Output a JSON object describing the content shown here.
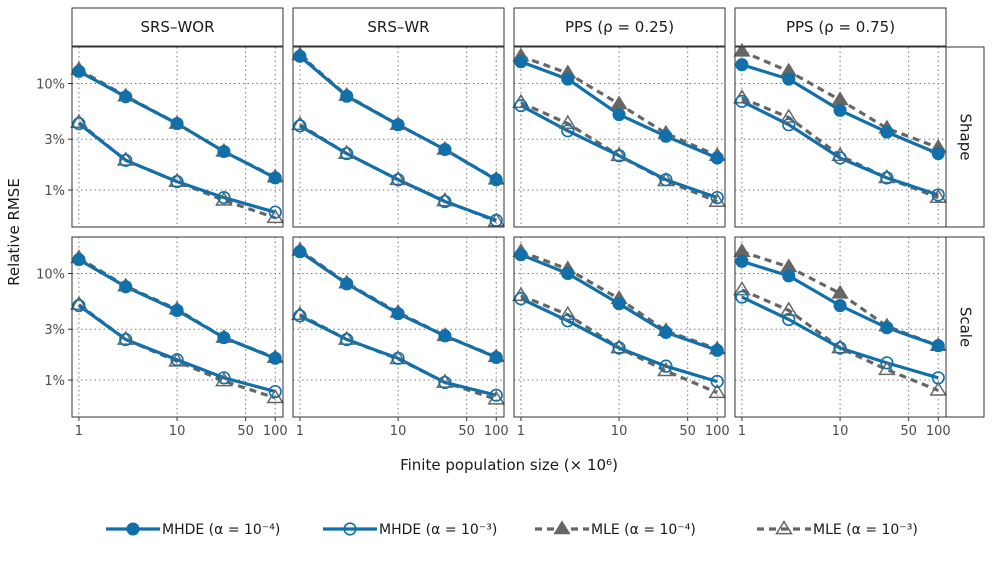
{
  "chart_data": {
    "type": "line",
    "xlabel": "Finite population size (× 10⁶)",
    "ylabel": "Relative RMSE",
    "x_scale": "log",
    "y_scale": "log",
    "xlim": [
      0.85,
      120
    ],
    "ylim": [
      0.0045,
      0.22
    ],
    "x_ticks": [
      1,
      10,
      50,
      100
    ],
    "x_tick_labels": [
      "1",
      "10",
      "50",
      "100"
    ],
    "y_ticks": [
      0.01,
      0.03,
      0.1
    ],
    "y_tick_labels": [
      "1%",
      "3%",
      "10%"
    ],
    "x": [
      1,
      3,
      10,
      30,
      100
    ],
    "columns": [
      "SRS–WOR",
      "SRS–WR",
      "PPS (ρ = 0.25)",
      "PPS (ρ = 0.75)"
    ],
    "rows": [
      "Shape",
      "Scale"
    ],
    "legend": [
      {
        "label": "MHDE (α = 10⁻⁴)",
        "series": 0
      },
      {
        "label": "MHDE (α = 10⁻³)",
        "series": 1
      },
      {
        "label": "MLE (α = 10⁻⁴)",
        "series": 2
      },
      {
        "label": "MLE (α = 10⁻³)",
        "series": 3
      }
    ],
    "legend_position": "bottom",
    "series_styles": [
      {
        "name": "MHDE (α = 10⁻⁴)",
        "color": "#1170aa",
        "marker": "circle-filled",
        "line": "solid"
      },
      {
        "name": "MHDE (α = 10⁻³)",
        "color": "#1170aa",
        "marker": "circle-open",
        "line": "solid"
      },
      {
        "name": "MLE (α = 10⁻⁴)",
        "color": "#666666",
        "marker": "triangle-filled",
        "line": "dashed"
      },
      {
        "name": "MLE (α = 10⁻³)",
        "color": "#666666",
        "marker": "triangle-open",
        "line": "dashed"
      }
    ],
    "panels": [
      {
        "row": "Shape",
        "col": "SRS–WOR",
        "series": [
          {
            "name": "MHDE (α = 10⁻⁴)",
            "values": [
              0.13,
              0.075,
              0.042,
              0.023,
              0.013
            ]
          },
          {
            "name": "MHDE (α = 10⁻³)",
            "values": [
              0.042,
              0.019,
              0.012,
              0.0085,
              0.0062
            ]
          },
          {
            "name": "MLE (α = 10⁻⁴)",
            "values": [
              0.135,
              0.076,
              0.042,
              0.023,
              0.0132
            ]
          },
          {
            "name": "MLE (α = 10⁻³)",
            "values": [
              0.043,
              0.019,
              0.012,
              0.008,
              0.0055
            ]
          }
        ]
      },
      {
        "row": "Shape",
        "col": "SRS–WR",
        "series": [
          {
            "name": "MHDE (α = 10⁻⁴)",
            "values": [
              0.18,
              0.076,
              0.041,
              0.024,
              0.0125
            ]
          },
          {
            "name": "MHDE (α = 10⁻³)",
            "values": [
              0.04,
              0.022,
              0.0125,
              0.0078,
              0.0052
            ]
          },
          {
            "name": "MLE (α = 10⁻⁴)",
            "values": [
              0.185,
              0.077,
              0.041,
              0.024,
              0.0126
            ]
          },
          {
            "name": "MLE (α = 10⁻³)",
            "values": [
              0.041,
              0.022,
              0.0125,
              0.0079,
              0.0051
            ]
          }
        ]
      },
      {
        "row": "Shape",
        "col": "PPS (ρ = 0.25)",
        "series": [
          {
            "name": "MHDE (α = 10⁻⁴)",
            "values": [
              0.16,
              0.11,
              0.051,
              0.032,
              0.02
            ]
          },
          {
            "name": "MHDE (α = 10⁻³)",
            "values": [
              0.062,
              0.036,
              0.021,
              0.0125,
              0.0085
            ]
          },
          {
            "name": "MLE (α = 10⁻⁴)",
            "values": [
              0.18,
              0.125,
              0.064,
              0.034,
              0.021
            ]
          },
          {
            "name": "MLE (α = 10⁻³)",
            "values": [
              0.066,
              0.042,
              0.021,
              0.0122,
              0.0078
            ]
          }
        ]
      },
      {
        "row": "Shape",
        "col": "PPS (ρ = 0.75)",
        "series": [
          {
            "name": "MHDE (α = 10⁻⁴)",
            "values": [
              0.15,
              0.11,
              0.056,
              0.035,
              0.022
            ]
          },
          {
            "name": "MHDE (α = 10⁻³)",
            "values": [
              0.068,
              0.041,
              0.02,
              0.013,
              0.009
            ]
          },
          {
            "name": "MLE (α = 10⁻⁴)",
            "values": [
              0.2,
              0.13,
              0.07,
              0.038,
              0.025
            ]
          },
          {
            "name": "MLE (α = 10⁻³)",
            "values": [
              0.073,
              0.048,
              0.021,
              0.013,
              0.0085
            ]
          }
        ]
      },
      {
        "row": "Scale",
        "col": "SRS–WOR",
        "series": [
          {
            "name": "MHDE (α = 10⁻⁴)",
            "values": [
              0.135,
              0.075,
              0.045,
              0.025,
              0.016
            ]
          },
          {
            "name": "MHDE (α = 10⁻³)",
            "values": [
              0.05,
              0.024,
              0.0155,
              0.0105,
              0.0078
            ]
          },
          {
            "name": "MLE (α = 10⁻⁴)",
            "values": [
              0.14,
              0.076,
              0.046,
              0.025,
              0.0162
            ]
          },
          {
            "name": "MLE (α = 10⁻³)",
            "values": [
              0.051,
              0.024,
              0.015,
              0.0098,
              0.0068
            ]
          }
        ]
      },
      {
        "row": "Scale",
        "col": "SRS–WR",
        "series": [
          {
            "name": "MHDE (α = 10⁻⁴)",
            "values": [
              0.16,
              0.08,
              0.042,
              0.026,
              0.0163
            ]
          },
          {
            "name": "MHDE (α = 10⁻³)",
            "values": [
              0.04,
              0.024,
              0.016,
              0.0095,
              0.0072
            ]
          },
          {
            "name": "MLE (α = 10⁻⁴)",
            "values": [
              0.165,
              0.081,
              0.043,
              0.026,
              0.0165
            ]
          },
          {
            "name": "MLE (α = 10⁻³)",
            "values": [
              0.041,
              0.024,
              0.0158,
              0.0095,
              0.0066
            ]
          }
        ]
      },
      {
        "row": "Scale",
        "col": "PPS (ρ = 0.25)",
        "series": [
          {
            "name": "MHDE (α = 10⁻⁴)",
            "values": [
              0.15,
              0.1,
              0.052,
              0.028,
              0.019
            ]
          },
          {
            "name": "MHDE (α = 10⁻³)",
            "values": [
              0.058,
              0.036,
              0.02,
              0.0135,
              0.0097
            ]
          },
          {
            "name": "MLE (α = 10⁻⁴)",
            "values": [
              0.16,
              0.11,
              0.058,
              0.029,
              0.0195
            ]
          },
          {
            "name": "MLE (α = 10⁻³)",
            "values": [
              0.062,
              0.041,
              0.02,
              0.0122,
              0.0076
            ]
          }
        ]
      },
      {
        "row": "Scale",
        "col": "PPS (ρ = 0.75)",
        "series": [
          {
            "name": "MHDE (α = 10⁻⁴)",
            "values": [
              0.13,
              0.095,
              0.05,
              0.031,
              0.021
            ]
          },
          {
            "name": "MHDE (α = 10⁻³)",
            "values": [
              0.06,
              0.037,
              0.02,
              0.0145,
              0.0105
            ]
          },
          {
            "name": "MLE (α = 10⁻⁴)",
            "values": [
              0.16,
              0.115,
              0.065,
              0.032,
              0.021
            ]
          },
          {
            "name": "MLE (α = 10⁻³)",
            "values": [
              0.07,
              0.045,
              0.02,
              0.0125,
              0.008
            ]
          }
        ]
      }
    ]
  }
}
